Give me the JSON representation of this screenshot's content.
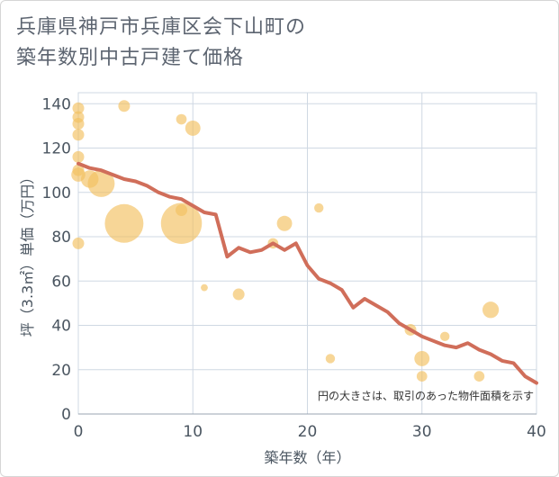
{
  "chart_data": {
    "type": "scatter",
    "title_lines": [
      "兵庫県神戸市兵庫区会下山町の",
      "築年数別中古戸建て価格"
    ],
    "xlabel": "築年数（年）",
    "ylabel": "坪（3.3㎡）単価（万円）",
    "xlim": [
      0,
      40
    ],
    "ylim": [
      0,
      145
    ],
    "xticks": [
      0,
      10,
      20,
      30,
      40
    ],
    "yticks": [
      0,
      20,
      40,
      60,
      80,
      100,
      120,
      140
    ],
    "grid": true,
    "note": "円の大きさは、取引のあった物件面積を示す",
    "colors": {
      "bubble": "#f2c060",
      "line": "#d06e5a",
      "grid": "#cfd8e3"
    },
    "series": [
      {
        "type": "bubble",
        "points": [
          {
            "x": 0,
            "y": 138,
            "s": 1
          },
          {
            "x": 0,
            "y": 134,
            "s": 1
          },
          {
            "x": 0,
            "y": 131,
            "s": 1
          },
          {
            "x": 0,
            "y": 126,
            "s": 1
          },
          {
            "x": 0,
            "y": 116,
            "s": 1
          },
          {
            "x": 0,
            "y": 110,
            "s": 1
          },
          {
            "x": 0,
            "y": 108,
            "s": 1.2
          },
          {
            "x": 0,
            "y": 77,
            "s": 1
          },
          {
            "x": 1,
            "y": 106,
            "s": 1.5
          },
          {
            "x": 2,
            "y": 104,
            "s": 2.3
          },
          {
            "x": 4,
            "y": 139,
            "s": 1
          },
          {
            "x": 4,
            "y": 86,
            "s": 3.3
          },
          {
            "x": 9,
            "y": 133,
            "s": 0.9
          },
          {
            "x": 9,
            "y": 92,
            "s": 1
          },
          {
            "x": 9,
            "y": 86,
            "s": 3.5
          },
          {
            "x": 10,
            "y": 129,
            "s": 1.3
          },
          {
            "x": 11,
            "y": 57,
            "s": 0.6
          },
          {
            "x": 14,
            "y": 54,
            "s": 1
          },
          {
            "x": 17,
            "y": 77,
            "s": 0.9
          },
          {
            "x": 18,
            "y": 86,
            "s": 1.3
          },
          {
            "x": 21,
            "y": 93,
            "s": 0.8
          },
          {
            "x": 22,
            "y": 25,
            "s": 0.8
          },
          {
            "x": 29,
            "y": 38,
            "s": 1
          },
          {
            "x": 30,
            "y": 25,
            "s": 1.3
          },
          {
            "x": 30,
            "y": 17,
            "s": 0.9
          },
          {
            "x": 32,
            "y": 35,
            "s": 0.8
          },
          {
            "x": 35,
            "y": 17,
            "s": 0.9
          },
          {
            "x": 36,
            "y": 47,
            "s": 1.4
          }
        ]
      },
      {
        "type": "line",
        "x": [
          0,
          1,
          2,
          3,
          4,
          5,
          6,
          7,
          8,
          9,
          10,
          11,
          12,
          13,
          14,
          15,
          16,
          17,
          18,
          19,
          20,
          21,
          22,
          23,
          24,
          25,
          26,
          27,
          28,
          29,
          30,
          31,
          32,
          33,
          34,
          35,
          36,
          37,
          38,
          39,
          40
        ],
        "y": [
          113,
          111,
          110,
          108,
          106,
          105,
          103,
          100,
          98,
          97,
          94,
          91,
          90,
          71,
          75,
          73,
          74,
          77,
          74,
          77,
          67,
          61,
          59,
          56,
          48,
          52,
          49,
          46,
          41,
          38,
          35,
          33,
          31,
          30,
          32,
          29,
          27,
          24,
          23,
          17,
          14
        ]
      }
    ]
  }
}
